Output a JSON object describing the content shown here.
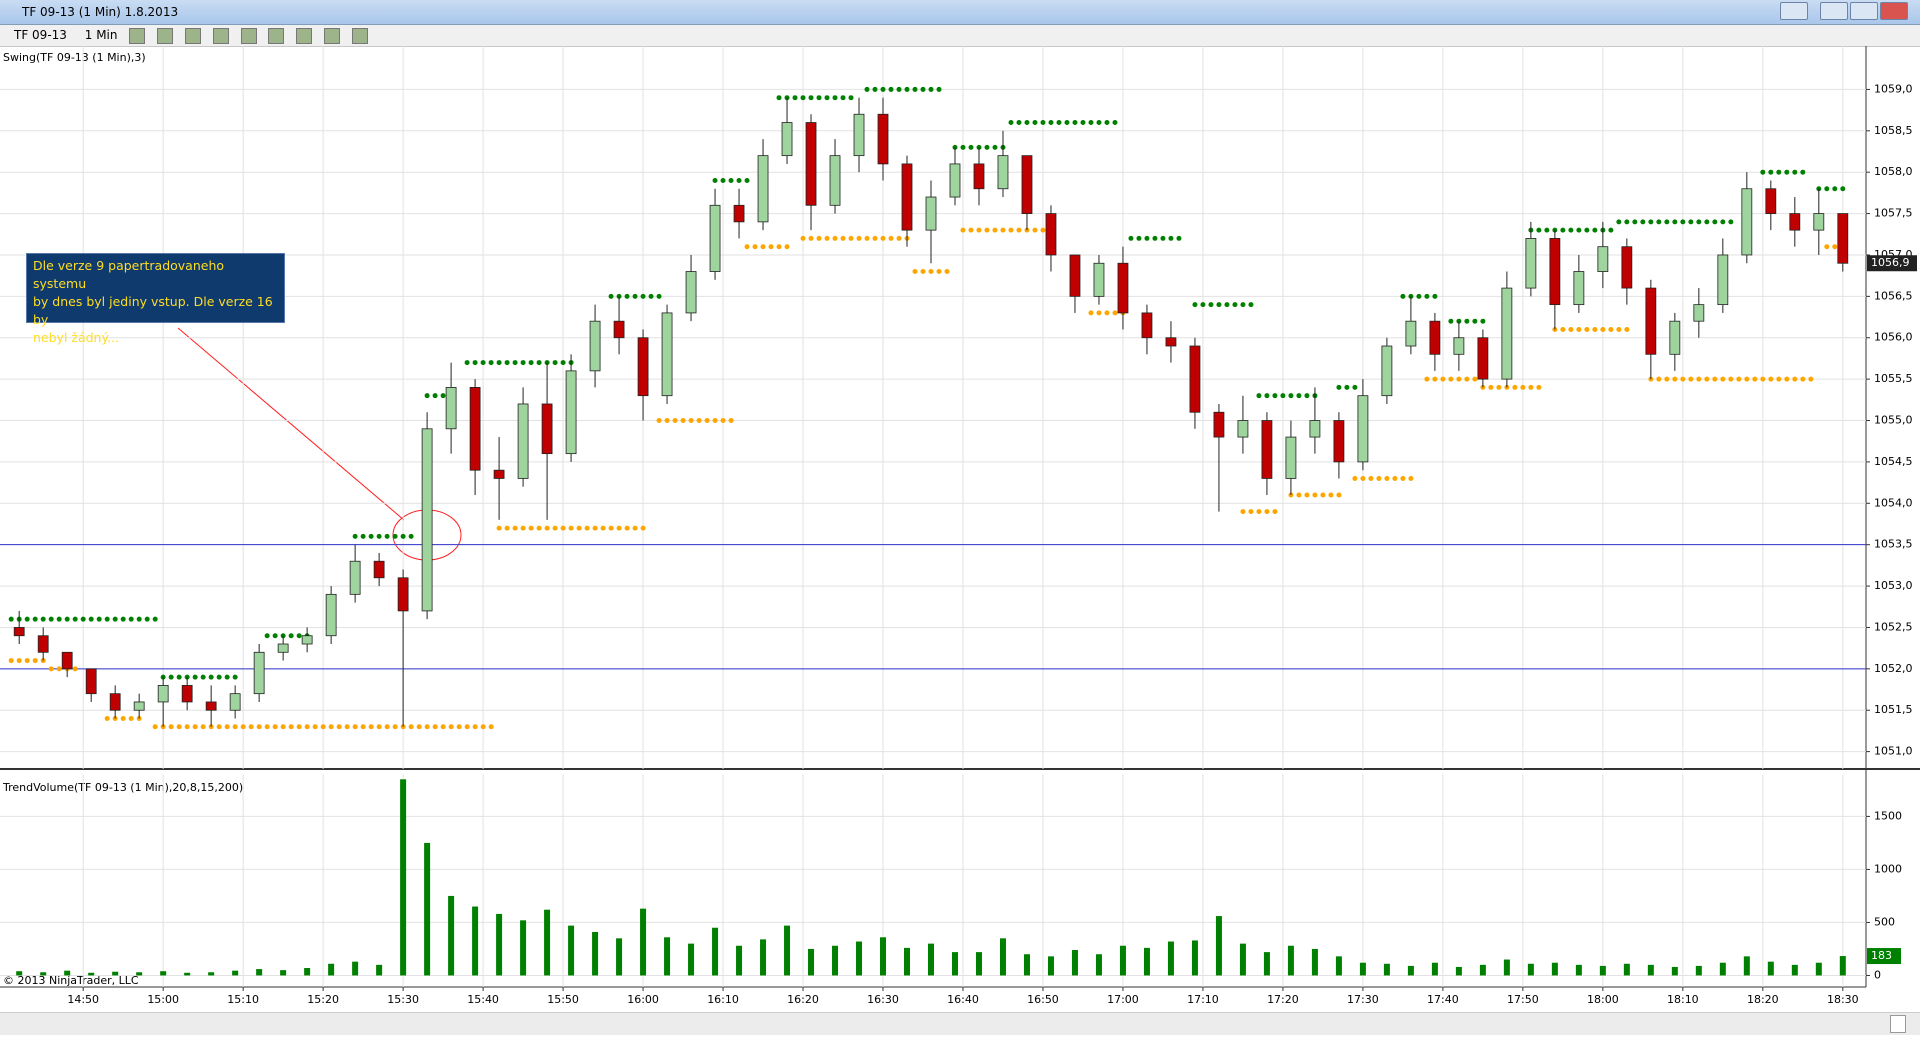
{
  "window": {
    "title": "TF 09-13 (1 Min)  1.8.2013"
  },
  "toolbar": {
    "instrument": "TF 09-13",
    "interval": "1 Min"
  },
  "annotation": {
    "lines": [
      "Dle verze 9 papertradovaneho systemu",
      "by dnes byl jediny vstup. Dle verze 16 by",
      "nebyl žádný..."
    ]
  },
  "copyright": "© 2013 NinjaTrader, LLC",
  "chart_data": [
    {
      "type": "candlestick",
      "title": "Swing(TF 09-13 (1 Min),3)",
      "up_color": "#9fd49f",
      "down_color": "#c00000",
      "grid": true,
      "xlim": [
        879.6,
        1112.9
      ],
      "ylim": [
        1050.79,
        1059.44
      ],
      "yticks": [
        {
          "value": 1051.0,
          "label": "1051,0"
        },
        {
          "value": 1051.5,
          "label": "1051,5"
        },
        {
          "value": 1052.0,
          "label": "1052,0"
        },
        {
          "value": 1052.5,
          "label": "1052,5"
        },
        {
          "value": 1053.0,
          "label": "1053,0"
        },
        {
          "value": 1053.5,
          "label": "1053,5"
        },
        {
          "value": 1054.0,
          "label": "1054,0"
        },
        {
          "value": 1054.5,
          "label": "1054,5"
        },
        {
          "value": 1055.0,
          "label": "1055,0"
        },
        {
          "value": 1055.5,
          "label": "1055,5"
        },
        {
          "value": 1056.0,
          "label": "1056,0"
        },
        {
          "value": 1056.5,
          "label": "1056,5"
        },
        {
          "value": 1057.0,
          "label": "1057,0"
        },
        {
          "value": 1057.5,
          "label": "1057,5"
        },
        {
          "value": 1058.0,
          "label": "1058,0"
        },
        {
          "value": 1058.5,
          "label": "1058,5"
        },
        {
          "value": 1059.0,
          "label": "1059,0"
        }
      ],
      "current_value": {
        "value": 1056.9,
        "label": "1056,9"
      },
      "hlines": [
        1053.5,
        1052.0
      ],
      "hline_color": "#3333cc",
      "x": [
        882,
        885,
        888,
        891,
        894,
        897,
        900,
        903,
        906,
        909,
        912,
        915,
        918,
        921,
        924,
        927,
        930,
        933,
        936,
        939,
        942,
        945,
        948,
        951,
        954,
        957,
        960,
        963,
        966,
        969,
        972,
        975,
        978,
        981,
        984,
        987,
        990,
        993,
        996,
        999,
        1002,
        1005,
        1008,
        1011,
        1014,
        1017,
        1020,
        1023,
        1026,
        1029,
        1032,
        1035,
        1038,
        1041,
        1044,
        1047,
        1050,
        1053,
        1056,
        1059,
        1062,
        1065,
        1068,
        1071,
        1074,
        1077,
        1080,
        1083,
        1086,
        1089,
        1092,
        1095,
        1098,
        1101,
        1104,
        1107,
        1110
      ],
      "ohlc": [
        [
          1052.5,
          1052.7,
          1052.3,
          1052.4
        ],
        [
          1052.4,
          1052.5,
          1052.1,
          1052.2
        ],
        [
          1052.2,
          1052.2,
          1051.9,
          1052.0
        ],
        [
          1052.0,
          1052.0,
          1051.6,
          1051.7
        ],
        [
          1051.7,
          1051.8,
          1051.4,
          1051.5
        ],
        [
          1051.5,
          1051.7,
          1051.4,
          1051.6
        ],
        [
          1051.6,
          1051.9,
          1051.3,
          1051.8
        ],
        [
          1051.8,
          1051.9,
          1051.5,
          1051.6
        ],
        [
          1051.6,
          1051.8,
          1051.3,
          1051.5
        ],
        [
          1051.5,
          1051.8,
          1051.4,
          1051.7
        ],
        [
          1051.7,
          1052.3,
          1051.6,
          1052.2
        ],
        [
          1052.2,
          1052.4,
          1052.1,
          1052.3
        ],
        [
          1052.3,
          1052.5,
          1052.2,
          1052.4
        ],
        [
          1052.4,
          1053.0,
          1052.3,
          1052.9
        ],
        [
          1052.9,
          1053.5,
          1052.8,
          1053.3
        ],
        [
          1053.3,
          1053.4,
          1053.0,
          1053.1
        ],
        [
          1053.1,
          1053.2,
          1051.3,
          1052.7
        ],
        [
          1052.7,
          1055.1,
          1052.6,
          1054.9
        ],
        [
          1054.9,
          1055.7,
          1054.6,
          1055.4
        ],
        [
          1055.4,
          1055.5,
          1054.1,
          1054.4
        ],
        [
          1054.4,
          1054.8,
          1053.8,
          1054.3
        ],
        [
          1054.3,
          1055.4,
          1054.2,
          1055.2
        ],
        [
          1055.2,
          1055.7,
          1053.8,
          1054.6
        ],
        [
          1054.6,
          1055.8,
          1054.5,
          1055.6
        ],
        [
          1055.6,
          1056.4,
          1055.4,
          1056.2
        ],
        [
          1056.2,
          1056.5,
          1055.8,
          1056.0
        ],
        [
          1056.0,
          1056.1,
          1055.0,
          1055.3
        ],
        [
          1055.3,
          1056.4,
          1055.2,
          1056.3
        ],
        [
          1056.3,
          1057.0,
          1056.2,
          1056.8
        ],
        [
          1056.8,
          1057.8,
          1056.7,
          1057.6
        ],
        [
          1057.6,
          1057.8,
          1057.2,
          1057.4
        ],
        [
          1057.4,
          1058.4,
          1057.3,
          1058.2
        ],
        [
          1058.2,
          1058.9,
          1058.1,
          1058.6
        ],
        [
          1058.6,
          1058.7,
          1057.3,
          1057.6
        ],
        [
          1057.6,
          1058.4,
          1057.5,
          1058.2
        ],
        [
          1058.2,
          1058.9,
          1058.0,
          1058.7
        ],
        [
          1058.7,
          1058.9,
          1057.9,
          1058.1
        ],
        [
          1058.1,
          1058.2,
          1057.1,
          1057.3
        ],
        [
          1057.3,
          1057.9,
          1056.9,
          1057.7
        ],
        [
          1057.7,
          1058.3,
          1057.6,
          1058.1
        ],
        [
          1058.1,
          1058.3,
          1057.6,
          1057.8
        ],
        [
          1057.8,
          1058.5,
          1057.7,
          1058.2
        ],
        [
          1058.2,
          1058.2,
          1057.3,
          1057.5
        ],
        [
          1057.5,
          1057.6,
          1056.8,
          1057.0
        ],
        [
          1057.0,
          1057.0,
          1056.3,
          1056.5
        ],
        [
          1056.5,
          1057.0,
          1056.4,
          1056.9
        ],
        [
          1056.9,
          1057.1,
          1056.1,
          1056.3
        ],
        [
          1056.3,
          1056.4,
          1055.8,
          1056.0
        ],
        [
          1056.0,
          1056.2,
          1055.7,
          1055.9
        ],
        [
          1055.9,
          1056.0,
          1054.9,
          1055.1
        ],
        [
          1055.1,
          1055.2,
          1053.9,
          1054.8
        ],
        [
          1054.8,
          1055.3,
          1054.6,
          1055.0
        ],
        [
          1055.0,
          1055.1,
          1054.1,
          1054.3
        ],
        [
          1054.3,
          1055.0,
          1054.1,
          1054.8
        ],
        [
          1054.8,
          1055.4,
          1054.6,
          1055.0
        ],
        [
          1055.0,
          1055.1,
          1054.3,
          1054.5
        ],
        [
          1054.5,
          1055.5,
          1054.4,
          1055.3
        ],
        [
          1055.3,
          1056.0,
          1055.2,
          1055.9
        ],
        [
          1055.9,
          1056.5,
          1055.8,
          1056.2
        ],
        [
          1056.2,
          1056.3,
          1055.6,
          1055.8
        ],
        [
          1055.8,
          1056.2,
          1055.6,
          1056.0
        ],
        [
          1056.0,
          1056.1,
          1055.4,
          1055.5
        ],
        [
          1055.5,
          1056.8,
          1055.4,
          1056.6
        ],
        [
          1056.6,
          1057.4,
          1056.5,
          1057.2
        ],
        [
          1057.2,
          1057.3,
          1056.1,
          1056.4
        ],
        [
          1056.4,
          1057.0,
          1056.3,
          1056.8
        ],
        [
          1056.8,
          1057.4,
          1056.6,
          1057.1
        ],
        [
          1057.1,
          1057.2,
          1056.4,
          1056.6
        ],
        [
          1056.6,
          1056.7,
          1055.5,
          1055.8
        ],
        [
          1055.8,
          1056.3,
          1055.6,
          1056.2
        ],
        [
          1056.2,
          1056.6,
          1056.0,
          1056.4
        ],
        [
          1056.4,
          1057.2,
          1056.3,
          1057.0
        ],
        [
          1057.0,
          1058.0,
          1056.9,
          1057.8
        ],
        [
          1057.8,
          1057.9,
          1057.3,
          1057.5
        ],
        [
          1057.5,
          1057.7,
          1057.1,
          1057.3
        ],
        [
          1057.3,
          1057.8,
          1057.0,
          1057.5
        ],
        [
          1057.5,
          1057.5,
          1056.8,
          1056.9
        ]
      ],
      "swing_high_color": "#008000",
      "swing_low_color": "#ffa500",
      "swing_highs": [
        [
          881,
          900,
          1052.6
        ],
        [
          900,
          910,
          1051.9
        ],
        [
          913,
          919,
          1052.4
        ],
        [
          924,
          932,
          1053.6
        ],
        [
          933,
          937,
          1055.3
        ],
        [
          938,
          952,
          1055.7
        ],
        [
          956,
          963,
          1056.5
        ],
        [
          969,
          974,
          1057.9
        ],
        [
          977,
          987,
          1058.9
        ],
        [
          988,
          998,
          1059.0
        ],
        [
          999,
          1006,
          1058.3
        ],
        [
          1006,
          1020,
          1058.6
        ],
        [
          1021,
          1028,
          1057.2
        ],
        [
          1029,
          1037,
          1056.4
        ],
        [
          1037,
          1045,
          1055.3
        ],
        [
          1047,
          1050,
          1055.4
        ],
        [
          1055,
          1060,
          1056.5
        ],
        [
          1061,
          1066,
          1056.2
        ],
        [
          1071,
          1082,
          1057.3
        ],
        [
          1082,
          1097,
          1057.4
        ],
        [
          1100,
          1106,
          1058.0
        ],
        [
          1107,
          1111,
          1057.8
        ]
      ],
      "swing_lows": [
        [
          881,
          886,
          1052.1
        ],
        [
          886,
          890,
          1052.0
        ],
        [
          893,
          898,
          1051.4
        ],
        [
          899,
          942,
          1051.3
        ],
        [
          942,
          961,
          1053.7
        ],
        [
          962,
          972,
          1055.0
        ],
        [
          973,
          979,
          1057.1
        ],
        [
          980,
          994,
          1057.2
        ],
        [
          994,
          999,
          1056.8
        ],
        [
          1000,
          1011,
          1057.3
        ],
        [
          1016,
          1021,
          1056.3
        ],
        [
          1035,
          1040,
          1053.9
        ],
        [
          1041,
          1048,
          1054.1
        ],
        [
          1049,
          1057,
          1054.3
        ],
        [
          1058,
          1065,
          1055.5
        ],
        [
          1065,
          1073,
          1055.4
        ],
        [
          1074,
          1084,
          1056.1
        ],
        [
          1086,
          1107,
          1055.5
        ],
        [
          1108,
          1111,
          1057.1
        ]
      ]
    },
    {
      "type": "bar",
      "title": "TrendVolume(TF 09-13 (1 Min),20,8,15,200)",
      "color": "#008000",
      "grid": true,
      "xlim": [
        879.6,
        1112.9
      ],
      "ylim": [
        -109,
        1900
      ],
      "yticks": [
        0,
        500,
        1000,
        1500
      ],
      "xticks": [
        {
          "value": 890,
          "label": "14:50"
        },
        {
          "value": 900,
          "label": "15:00"
        },
        {
          "value": 910,
          "label": "15:10"
        },
        {
          "value": 920,
          "label": "15:20"
        },
        {
          "value": 930,
          "label": "15:30"
        },
        {
          "value": 940,
          "label": "15:40"
        },
        {
          "value": 950,
          "label": "15:50"
        },
        {
          "value": 960,
          "label": "16:00"
        },
        {
          "value": 970,
          "label": "16:10"
        },
        {
          "value": 980,
          "label": "16:20"
        },
        {
          "value": 990,
          "label": "16:30"
        },
        {
          "value": 1000,
          "label": "16:40"
        },
        {
          "value": 1010,
          "label": "16:50"
        },
        {
          "value": 1020,
          "label": "17:00"
        },
        {
          "value": 1030,
          "label": "17:10"
        },
        {
          "value": 1040,
          "label": "17:20"
        },
        {
          "value": 1050,
          "label": "17:30"
        },
        {
          "value": 1060,
          "label": "17:40"
        },
        {
          "value": 1070,
          "label": "17:50"
        },
        {
          "value": 1080,
          "label": "18:00"
        },
        {
          "value": 1090,
          "label": "18:10"
        },
        {
          "value": 1100,
          "label": "18:20"
        },
        {
          "value": 1110,
          "label": "18:30"
        }
      ],
      "current_value": 183,
      "values": [
        40,
        30,
        45,
        25,
        35,
        30,
        40,
        25,
        30,
        45,
        60,
        50,
        70,
        110,
        130,
        100,
        1850,
        1250,
        750,
        650,
        580,
        520,
        620,
        470,
        410,
        350,
        630,
        360,
        300,
        450,
        280,
        340,
        470,
        250,
        280,
        320,
        360,
        260,
        300,
        220,
        220,
        350,
        200,
        180,
        240,
        200,
        280,
        260,
        320,
        330,
        560,
        300,
        220,
        280,
        250,
        180,
        120,
        110,
        90,
        120,
        80,
        100,
        150,
        110,
        120,
        100,
        90,
        110,
        100,
        80,
        90,
        120,
        180,
        130,
        100,
        120,
        183
      ]
    }
  ]
}
